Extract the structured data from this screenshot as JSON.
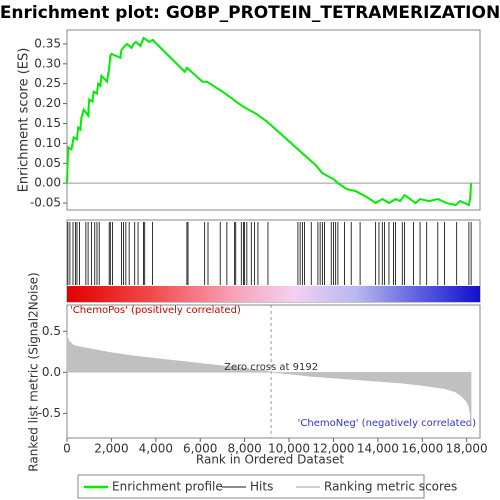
{
  "chart_data": [
    {
      "type": "line",
      "title": "Enrichment plot: GOBP_PROTEIN_TETRAMERIZATION",
      "ylabel": "Enrichment score (ES)",
      "xlim": [
        0,
        18600
      ],
      "ylim": [
        -0.0675,
        0.385
      ],
      "yticks": [
        0.35,
        {
          "value": 0.3,
          "label": "0.30"
        },
        0.25,
        {
          "value": 0.2,
          "label": "0.20"
        },
        0.15,
        {
          "value": 0.1,
          "label": "0.10"
        },
        0.05,
        {
          "value": 0,
          "label": "0.00"
        },
        -0.05
      ],
      "series": [
        {
          "name": "Enrichment profile",
          "color": "#00ee00",
          "x": [
            0,
            50,
            200,
            300,
            450,
            500,
            600,
            650,
            750,
            950,
            1000,
            1150,
            1200,
            1350,
            1400,
            1500,
            1550,
            1800,
            1900,
            1950,
            2000,
            2400,
            2450,
            2600,
            2700,
            2900,
            3000,
            3100,
            3300,
            3450,
            3700,
            3850,
            5300,
            5400,
            6100,
            6300,
            7000,
            7500,
            7600,
            8000,
            8500,
            9000,
            10000,
            10500,
            11200,
            11500,
            12000,
            12200,
            12600,
            13000,
            13500,
            13900,
            14200,
            14500,
            14800,
            15000,
            15200,
            15700,
            15900,
            16300,
            16700,
            17100,
            17500,
            17700,
            18100,
            18150,
            18200
          ],
          "values": [
            0.0,
            0.09,
            0.085,
            0.115,
            0.11,
            0.14,
            0.135,
            0.165,
            0.185,
            0.17,
            0.21,
            0.205,
            0.23,
            0.225,
            0.25,
            0.245,
            0.27,
            0.255,
            0.29,
            0.32,
            0.325,
            0.315,
            0.335,
            0.345,
            0.35,
            0.34,
            0.35,
            0.355,
            0.345,
            0.365,
            0.355,
            0.36,
            0.28,
            0.29,
            0.255,
            0.255,
            0.23,
            0.21,
            0.205,
            0.19,
            0.175,
            0.155,
            0.105,
            0.08,
            0.045,
            0.025,
            0.01,
            0.0,
            -0.015,
            -0.02,
            -0.035,
            -0.05,
            -0.04,
            -0.05,
            -0.04,
            -0.045,
            -0.03,
            -0.05,
            -0.04,
            -0.045,
            -0.04,
            -0.05,
            -0.055,
            -0.045,
            -0.055,
            -0.04,
            0.0
          ]
        },
        {
          "name": "Hits",
          "color": "#000000",
          "x": [
            40,
            130,
            270,
            380,
            450,
            560,
            850,
            950,
            1100,
            1250,
            1350,
            1450,
            1900,
            1950,
            2050,
            2450,
            2550,
            2650,
            2800,
            3050,
            3200,
            3450,
            3500,
            3850,
            5400,
            5450,
            6200,
            6350,
            6900,
            7200,
            7550,
            7600,
            7850,
            7950,
            8000,
            8100,
            8300,
            8450,
            8600,
            9050,
            10400,
            10500,
            10600,
            10700,
            11000,
            11300,
            11400,
            11500,
            11600,
            11900,
            12000,
            12100,
            12200,
            12500,
            12800,
            13200,
            13900,
            14050,
            14200,
            14300,
            14500,
            14700,
            14800,
            15100,
            15200,
            15600,
            15900,
            16200,
            16700,
            17000,
            17550,
            18100,
            18200
          ]
        }
      ]
    },
    {
      "type": "area",
      "ylabel": "Ranked list metric (Signal2Noise)",
      "xlabel": "Rank in Ordered Dataset",
      "xlim": [
        0,
        18600
      ],
      "ylim": [
        -0.8,
        0.82
      ],
      "xticks": [
        0,
        {
          "value": 2000,
          "label": "2,000"
        },
        {
          "value": 4000,
          "label": "4,000"
        },
        {
          "value": 6000,
          "label": "6,000"
        },
        {
          "value": 8000,
          "label": "8,000"
        },
        {
          "value": 10000,
          "label": "10,000"
        },
        {
          "value": 12000,
          "label": "12,000"
        },
        {
          "value": 14000,
          "label": "14,000"
        },
        {
          "value": 16000,
          "label": "16,000"
        },
        {
          "value": 18000,
          "label": "18,000"
        }
      ],
      "yticks": [
        0.5,
        {
          "value": 0,
          "label": "0.0"
        },
        -0.5
      ],
      "zero_cross": 9192,
      "zero_cross_label": "Zero cross at 9192",
      "pos_label": "'ChemoPos' (positively correlated)",
      "neg_label": "'ChemoNeg' (negatively correlated)",
      "series": [
        {
          "name": "Ranking metric scores",
          "color": "#c0c0c0",
          "x": [
            0,
            100,
            300,
            600,
            1000,
            2000,
            3000,
            4000,
            5000,
            6000,
            7000,
            8000,
            9000,
            9192,
            10000,
            11000,
            12000,
            13000,
            14000,
            15000,
            16000,
            17000,
            17500,
            17800,
            18000,
            18100,
            18150,
            18200
          ],
          "values": [
            0.45,
            0.38,
            0.33,
            0.31,
            0.29,
            0.24,
            0.2,
            0.17,
            0.14,
            0.11,
            0.08,
            0.05,
            0.02,
            0.0,
            -0.02,
            -0.05,
            -0.07,
            -0.09,
            -0.11,
            -0.13,
            -0.16,
            -0.2,
            -0.24,
            -0.3,
            -0.36,
            -0.42,
            -0.5,
            -0.65
          ]
        }
      ]
    }
  ]
}
